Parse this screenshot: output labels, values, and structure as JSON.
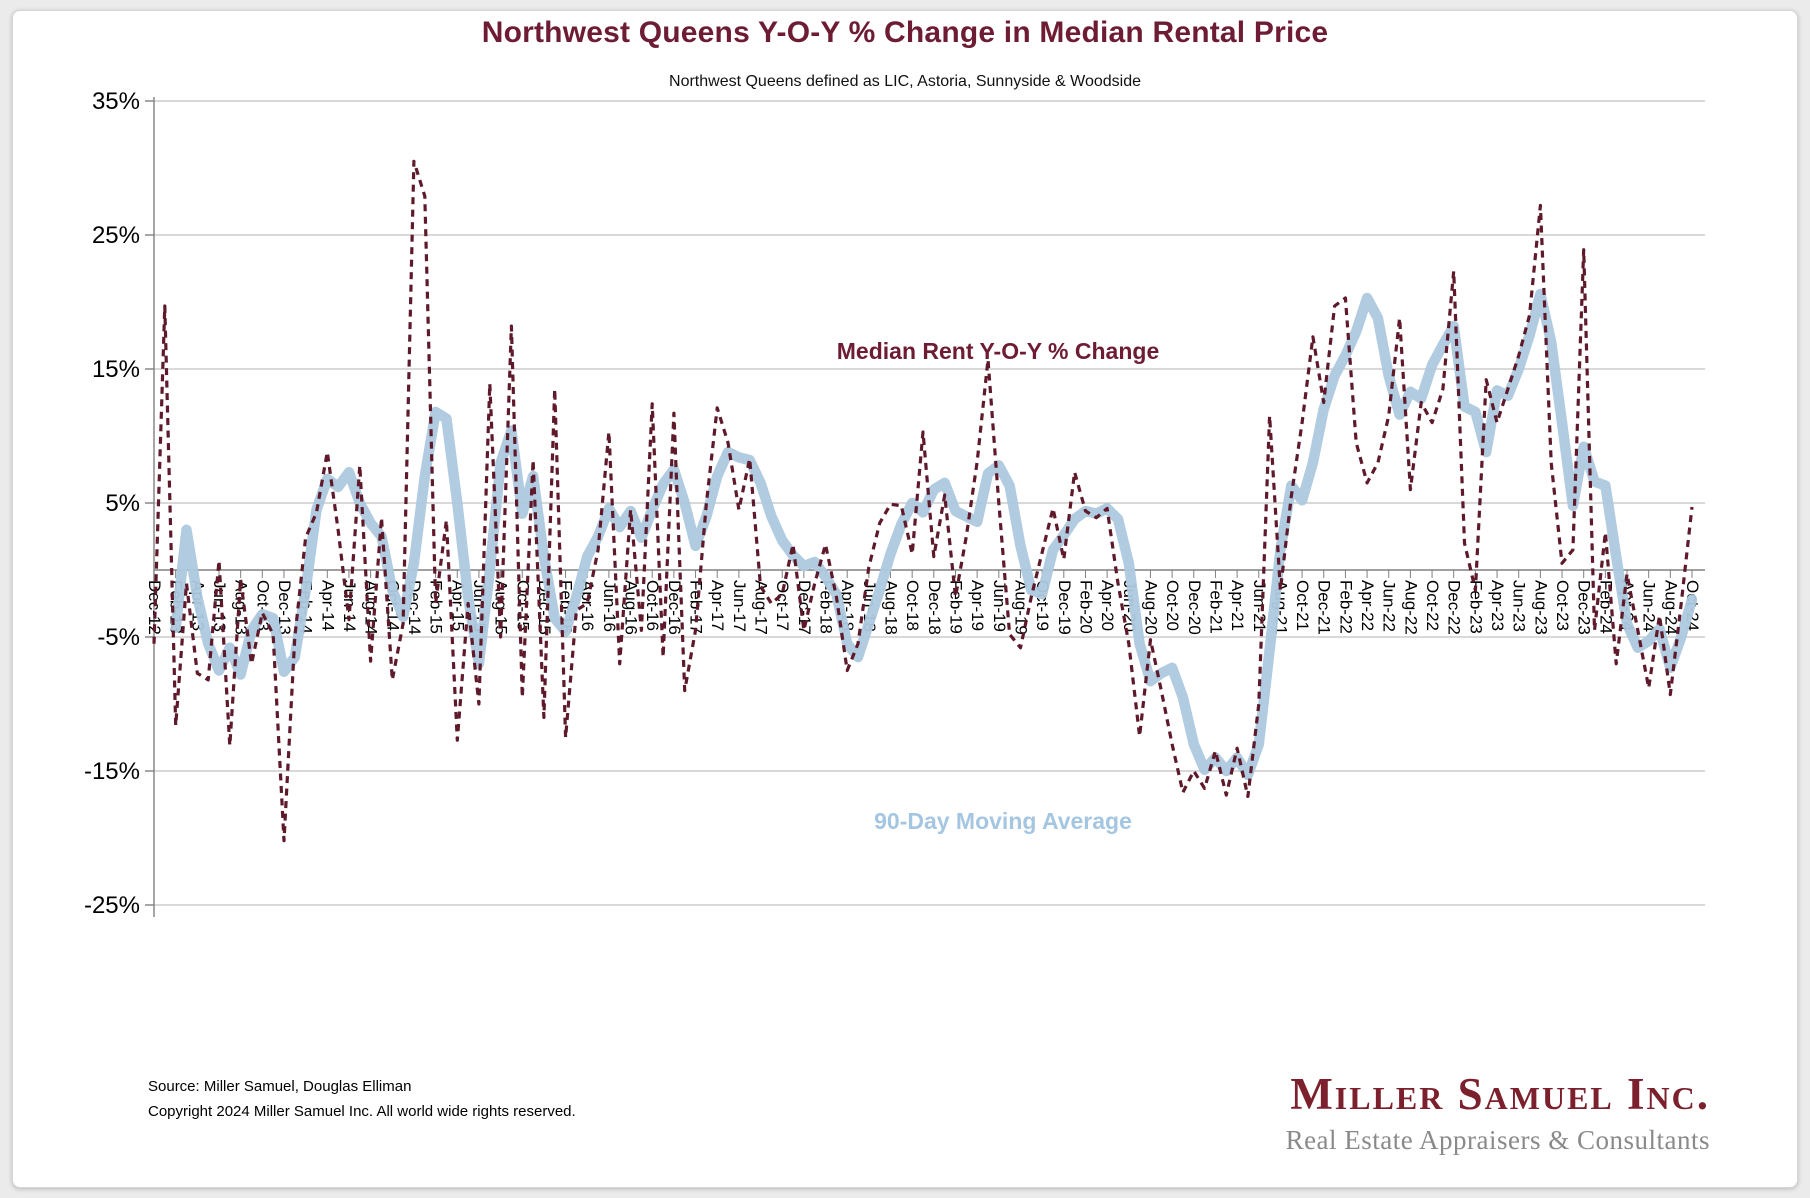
{
  "page": {
    "background": "#ebebeb",
    "card_background": "#ffffff"
  },
  "chart_data": {
    "type": "line",
    "title": "Northwest Queens Y-O-Y % Change in Median Rental Price",
    "subtitle": "Northwest Queens defined as LIC, Astoria, Sunnyside & Woodside",
    "x_unit": "month",
    "x_start": "Dec-12",
    "x_end": "Oct-24",
    "tick_every_months": 2,
    "grid": "horizontal",
    "legend_position": "inline-annotations",
    "ylim": [
      -25,
      35
    ],
    "y_ticks": [
      {
        "label": "35%",
        "value": 35
      },
      {
        "label": "25%",
        "value": 25
      },
      {
        "label": "15%",
        "value": 15
      },
      {
        "label": "5%",
        "value": 5
      },
      {
        "label": "-5%",
        "value": -5
      },
      {
        "label": "-15%",
        "value": -15
      },
      {
        "label": "-25%",
        "value": -25
      }
    ],
    "x_tick_labels": [
      "Dec-12",
      "Feb-13",
      "Apr-13",
      "Jun-13",
      "Aug-13",
      "Oct-13",
      "Dec-13",
      "Feb-14",
      "Apr-14",
      "Jun-14",
      "Aug-14",
      "Oct-14",
      "Dec-14",
      "Feb-15",
      "Apr-15",
      "Jun-15",
      "Aug-15",
      "Oct-15",
      "Dec-15",
      "Feb-16",
      "Apr-16",
      "Jun-16",
      "Aug-16",
      "Oct-16",
      "Dec-16",
      "Feb-17",
      "Apr-17",
      "Jun-17",
      "Aug-17",
      "Oct-17",
      "Dec-17",
      "Feb-18",
      "Apr-18",
      "Jun-18",
      "Aug-18",
      "Oct-18",
      "Dec-18",
      "Feb-19",
      "Apr-19",
      "Jun-19",
      "Aug-19",
      "Oct-19",
      "Dec-19",
      "Feb-20",
      "Apr-20",
      "Jun-20",
      "Aug-20",
      "Oct-20",
      "Dec-20",
      "Feb-21",
      "Apr-21",
      "Jun-21",
      "Aug-21",
      "Oct-21",
      "Dec-21",
      "Feb-22",
      "Apr-22",
      "Jun-22",
      "Aug-22",
      "Oct-22",
      "Dec-22",
      "Feb-23",
      "Apr-23",
      "Jun-23",
      "Aug-23",
      "Oct-23",
      "Dec-23",
      "Feb-24",
      "Apr-24",
      "Jun-24",
      "Aug-24",
      "Oct-24"
    ],
    "series": [
      {
        "name": "Median Rent Y-O-Y % Change",
        "color": "#5e1a2b",
        "line_style": "dashed",
        "values": [
          -5.5,
          19.7,
          -11.6,
          -1,
          -7.7,
          -8.2,
          0.7,
          -13.1,
          -0.7,
          -7,
          -3.2,
          -4.8,
          -20.2,
          -5,
          2.4,
          4.3,
          8.8,
          3,
          -3.7,
          7.8,
          -6.8,
          3.9,
          -8.2,
          -4,
          30.5,
          27.9,
          -2.5,
          3.7,
          -12.7,
          -2.5,
          -10,
          13.9,
          -5,
          18.2,
          -9.5,
          8.2,
          -11,
          13.5,
          -12.5,
          -3,
          -2.5,
          1.5,
          10.3,
          -7,
          4.5,
          -4.5,
          12.4,
          -6.5,
          11.7,
          -9,
          -4.5,
          5,
          12.1,
          9.5,
          4.5,
          8.3,
          -1.2,
          -2.5,
          -1.8,
          1.9,
          -4.5,
          -1,
          1.9,
          -2,
          -7.5,
          -5.5,
          0.2,
          3.5,
          4.9,
          4.8,
          1.2,
          10.3,
          1,
          5.6,
          -2,
          2.5,
          8.1,
          15.7,
          5,
          -4.8,
          -5.8,
          -2,
          1.3,
          4.6,
          0.8,
          7.3,
          4.4,
          3.9,
          4.6,
          -1,
          -5.5,
          -12.4,
          -5.2,
          -9,
          -13,
          -16.6,
          -15,
          -16.3,
          -13.5,
          -16.8,
          -13.3,
          -16.9,
          -10,
          11.5,
          -1.5,
          5.5,
          11,
          17.4,
          12.5,
          19.7,
          20.3,
          9.5,
          6.5,
          8,
          11.5,
          18.8,
          6,
          12.5,
          11,
          13.5,
          22.3,
          2,
          -1.5,
          14.2,
          11,
          13.5,
          16,
          19,
          27.2,
          8,
          0.5,
          1.5,
          23.9,
          -4.5,
          2.8,
          -7,
          -0.3,
          -4.5,
          -8.8,
          -3.4,
          -9.3,
          -2.5,
          4.7
        ]
      },
      {
        "name": "90-Day Moving Average",
        "color": "#adc9df",
        "line_style": "solid",
        "values": [
          null,
          null,
          -4.3,
          3,
          -2,
          -5.5,
          -7.5,
          -5.8,
          -7.8,
          -4.5,
          -3.3,
          -3.6,
          -7.6,
          -6.5,
          -1.5,
          4.5,
          6.8,
          6.2,
          7.3,
          5,
          3.5,
          2.5,
          -1.5,
          -3.5,
          0.5,
          7,
          11.8,
          11.3,
          5,
          -2,
          -7,
          0,
          8,
          10.4,
          4.2,
          7,
          1,
          -3.6,
          -4.6,
          -2,
          1,
          2.5,
          4.6,
          3.2,
          4.4,
          2.4,
          4.5,
          6.4,
          7.5,
          5,
          1.8,
          4,
          7,
          8.8,
          8.4,
          8.2,
          6.5,
          4,
          2.2,
          1.1,
          0.3,
          0.6,
          -0.5,
          -1.8,
          -5.5,
          -6.5,
          -4,
          -1.5,
          1.2,
          3.4,
          5,
          4.3,
          6,
          6.5,
          4.4,
          4,
          3.6,
          7.2,
          7.8,
          6.3,
          1.8,
          -1.5,
          -1.8,
          1.5,
          2.6,
          3.8,
          4.4,
          4.2,
          4.6,
          3.8,
          0.5,
          -5.5,
          -8.3,
          -7.7,
          -7.3,
          -9.5,
          -13,
          -14.9,
          -14,
          -15,
          -14,
          -15.3,
          -13,
          -6,
          1.5,
          6.3,
          5.2,
          8,
          12,
          14.5,
          16,
          17.8,
          20.3,
          18.8,
          14.5,
          11.6,
          13.3,
          12.8,
          15.3,
          16.8,
          18.2,
          12.2,
          11.8,
          8.8,
          13.4,
          13,
          15,
          17.5,
          20.6,
          17,
          11,
          4.8,
          9.2,
          6.6,
          6.3,
          1,
          -4,
          -5.8,
          -5.3,
          -4.4,
          -7.3,
          -5,
          -2.2
        ]
      }
    ],
    "annotations": [
      {
        "text": "Median Rent Y-O-Y % Change",
        "color": "#6d1c33"
      },
      {
        "text": "90-Day Moving Average",
        "color": "#a5c6e0"
      }
    ]
  },
  "footer": {
    "source_line": "Source: Miller Samuel, Douglas Elliman",
    "copyright_line": "Copyright 2024 Miller Samuel Inc.  All world wide rights reserved."
  },
  "logo": {
    "name": "Miller Samuel Inc.",
    "tagline": "Real Estate Appraisers & Consultants",
    "color": "#7b202c",
    "tagline_color": "#8a8a8a"
  }
}
